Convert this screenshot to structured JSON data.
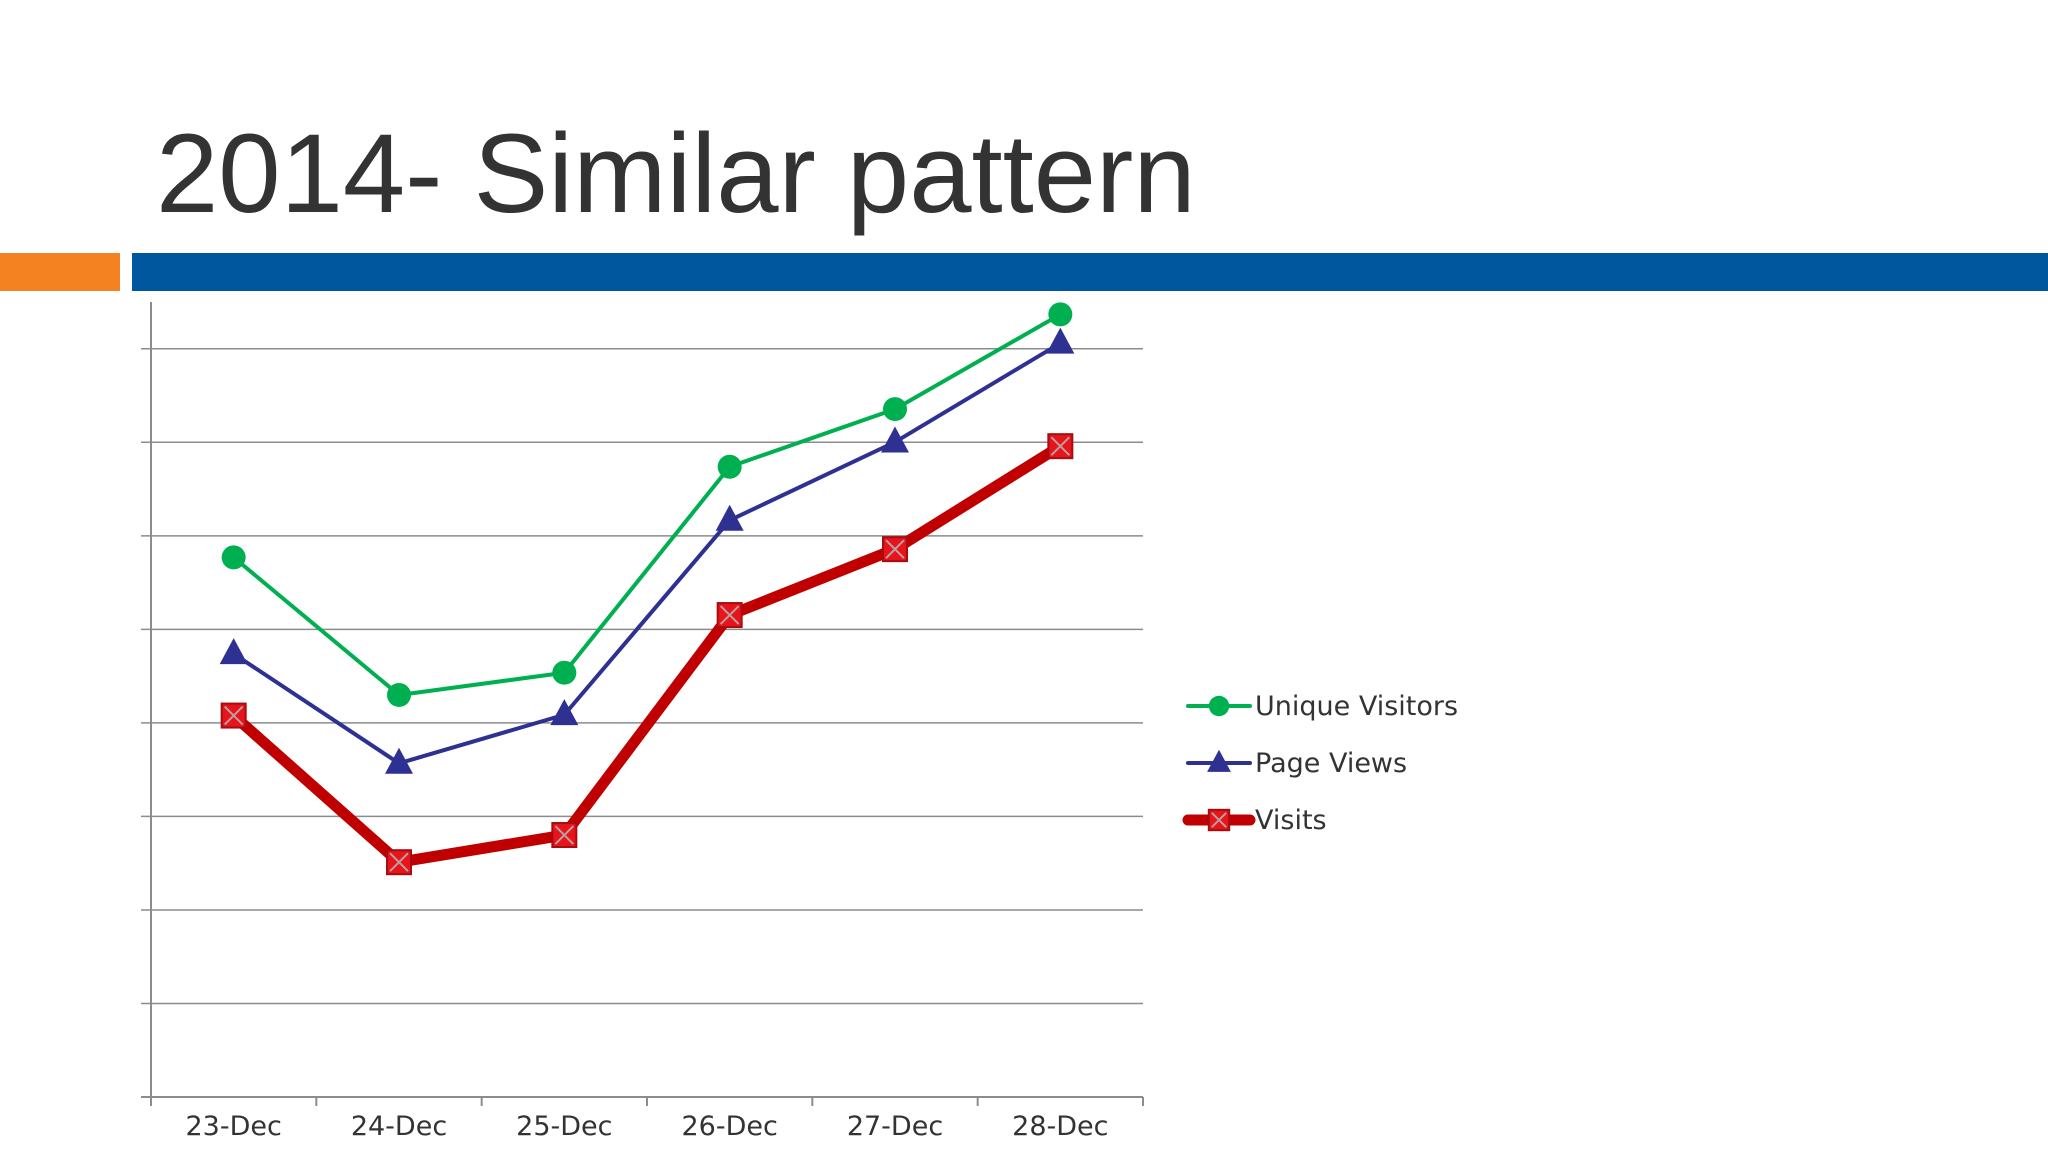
{
  "slide": {
    "title": "2014- Similar pattern"
  },
  "colors": {
    "accent_orange": "#f58220",
    "accent_blue": "#00579d",
    "gridline": "#8c8c8c"
  },
  "chart_data": {
    "type": "line",
    "categories": [
      "23-Dec",
      "24-Dec",
      "25-Dec",
      "26-Dec",
      "27-Dec",
      "28-Dec"
    ],
    "ylim": [
      0,
      9.65
    ],
    "y_gridlines": 9,
    "grid": true,
    "y_tick_labels_shown": false,
    "legend_position": "right",
    "series": [
      {
        "name": "Unique Visitors",
        "values": [
          6.55,
          4.88,
          5.15,
          7.65,
          8.35,
          9.5
        ],
        "color": "#00b050",
        "marker": "circle",
        "line_weight": "thin"
      },
      {
        "name": "Page Views",
        "values": [
          5.38,
          4.05,
          4.64,
          7.0,
          7.95,
          9.15
        ],
        "color": "#2e3192",
        "marker": "triangle",
        "line_weight": "thin"
      },
      {
        "name": "Visits",
        "values": [
          4.63,
          2.85,
          3.18,
          5.85,
          6.65,
          7.9
        ],
        "color": "#c00000",
        "marker": "square",
        "line_weight": "thick"
      }
    ]
  }
}
